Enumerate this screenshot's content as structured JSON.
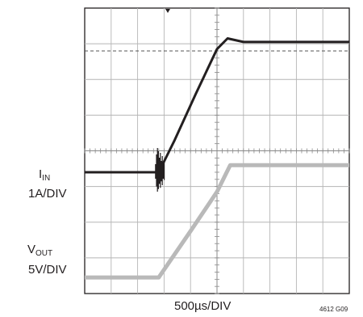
{
  "chart_data": {
    "type": "line",
    "title": "",
    "xlabel": "500µs/DIV",
    "ylabel": "",
    "x_unit": "µs",
    "x_per_div": 500,
    "divisions": {
      "x": 10,
      "y": 8
    },
    "grid": true,
    "figure_id": "4612 G09",
    "series": [
      {
        "name": "IIN",
        "label_main": "I",
        "label_sub": "IN",
        "scale": "1A/DIV",
        "color": "#231f20",
        "x": [
          0,
          1000,
          1400,
          1700,
          2100,
          2500,
          2700,
          3000,
          3500,
          4000,
          4500,
          5000
        ],
        "y_div": [
          -0.6,
          -0.6,
          -0.6,
          0.3,
          1.6,
          2.85,
          3.15,
          3.05,
          3.05,
          3.05,
          3.05,
          3.05
        ]
      },
      {
        "name": "VOUT",
        "label_main": "V",
        "label_sub": "OUT",
        "scale": "5V/DIV",
        "color": "#b9b9b9",
        "x": [
          0,
          1000,
          1400,
          2000,
          2500,
          2750,
          3000,
          3500,
          4000,
          4500,
          5000
        ],
        "y_div": [
          -3.55,
          -3.55,
          -3.55,
          -2.25,
          -1.15,
          -0.4,
          -0.4,
          -0.4,
          -0.4,
          -0.4,
          -0.4
        ]
      }
    ],
    "reference_line_div": 2.8
  }
}
